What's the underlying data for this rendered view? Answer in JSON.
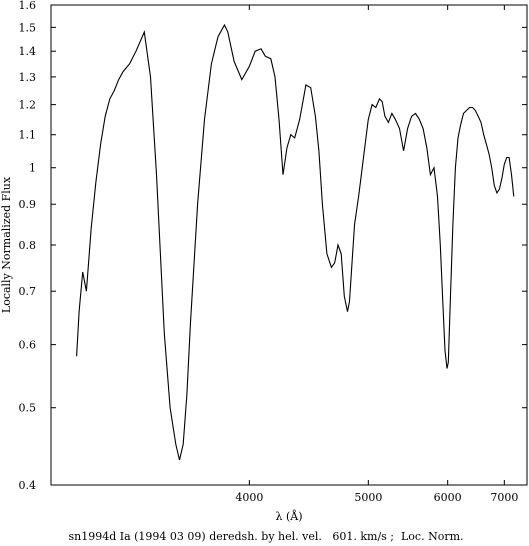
{
  "chart_data": {
    "type": "line",
    "title": "",
    "caption": "sn1994d Ia (1994 03 09) deredsh. by hel. vel.   601. km/s ;  Loc. Norm.",
    "xlabel": "λ (Å)",
    "ylabel": "Locally Normalized Flux",
    "x_scale": "reciprocal",
    "y_scale": "log",
    "xlim": [
      3000,
      7500
    ],
    "ylim": [
      0.4,
      1.6
    ],
    "x_ticks": [
      4000,
      5000,
      6000,
      7000
    ],
    "x_tick_labels": [
      "4000",
      "5000",
      "6000",
      "7000"
    ],
    "y_ticks": [
      0.4,
      0.5,
      0.6,
      0.7,
      0.8,
      0.9,
      1.0,
      1.1,
      1.2,
      1.3,
      1.4,
      1.5,
      1.6
    ],
    "y_tick_labels": [
      "0.4",
      "0.5",
      "0.6",
      "0.7",
      "0.8",
      "0.9",
      "1",
      "1.1",
      "1.2",
      "1.3",
      "1.4",
      "1.5",
      "1.6"
    ],
    "grid": false,
    "legend": "none",
    "series": [
      {
        "color": "#000000",
        "x": [
          3100,
          3110,
          3125,
          3140,
          3160,
          3180,
          3200,
          3220,
          3240,
          3260,
          3280,
          3300,
          3330,
          3360,
          3400,
          3430,
          3460,
          3500,
          3530,
          3560,
          3580,
          3600,
          3620,
          3640,
          3680,
          3720,
          3760,
          3800,
          3840,
          3860,
          3900,
          3950,
          4000,
          4040,
          4080,
          4110,
          4150,
          4180,
          4210,
          4240,
          4270,
          4300,
          4330,
          4370,
          4420,
          4460,
          4500,
          4530,
          4560,
          4600,
          4640,
          4670,
          4700,
          4730,
          4760,
          4790,
          4810,
          4840,
          4860,
          4900,
          4950,
          5000,
          5040,
          5080,
          5120,
          5150,
          5180,
          5220,
          5260,
          5300,
          5350,
          5400,
          5450,
          5500,
          5550,
          5600,
          5650,
          5700,
          5750,
          5800,
          5850,
          5890,
          5930,
          5960,
          5990,
          6010,
          6040,
          6080,
          6120,
          6160,
          6200,
          6250,
          6300,
          6350,
          6400,
          6450,
          6500,
          6550,
          6600,
          6650,
          6700,
          6750,
          6800,
          6850,
          6900,
          6950,
          7000,
          7050,
          7100,
          7150,
          7200
        ],
        "y": [
          0.58,
          0.66,
          0.74,
          0.7,
          0.84,
          0.96,
          1.07,
          1.16,
          1.22,
          1.25,
          1.29,
          1.32,
          1.35,
          1.4,
          1.48,
          1.3,
          0.98,
          0.62,
          0.5,
          0.45,
          0.43,
          0.45,
          0.52,
          0.64,
          0.9,
          1.15,
          1.35,
          1.46,
          1.51,
          1.48,
          1.36,
          1.29,
          1.34,
          1.4,
          1.41,
          1.38,
          1.37,
          1.3,
          1.15,
          0.98,
          1.06,
          1.1,
          1.09,
          1.15,
          1.27,
          1.26,
          1.16,
          1.05,
          0.9,
          0.78,
          0.75,
          0.76,
          0.8,
          0.78,
          0.69,
          0.66,
          0.68,
          0.78,
          0.85,
          0.92,
          1.03,
          1.15,
          1.2,
          1.19,
          1.22,
          1.21,
          1.16,
          1.14,
          1.17,
          1.15,
          1.12,
          1.05,
          1.12,
          1.16,
          1.17,
          1.15,
          1.12,
          1.06,
          0.98,
          1.0,
          0.92,
          0.8,
          0.67,
          0.59,
          0.56,
          0.57,
          0.68,
          0.85,
          1.0,
          1.09,
          1.13,
          1.17,
          1.18,
          1.19,
          1.19,
          1.18,
          1.16,
          1.14,
          1.1,
          1.07,
          1.04,
          1.0,
          0.95,
          0.93,
          0.94,
          0.97,
          1.01,
          1.03,
          1.03,
          0.98,
          0.92
        ]
      }
    ]
  }
}
